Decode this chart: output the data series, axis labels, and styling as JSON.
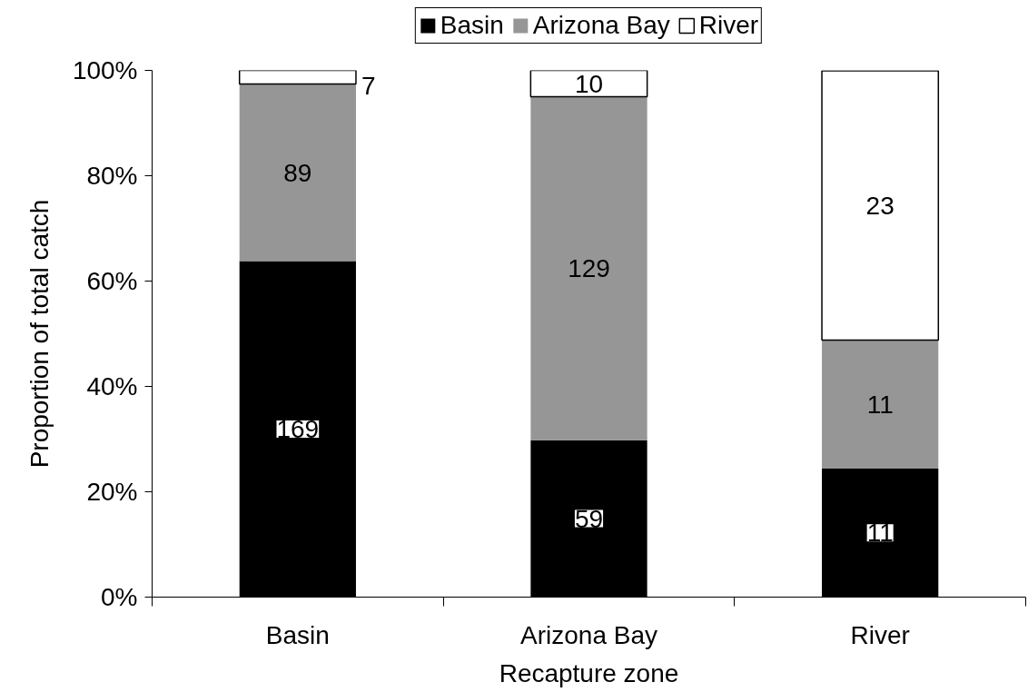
{
  "chart_data": {
    "type": "bar",
    "xlabel": "Recapture zone",
    "ylabel": "Proportion of total catch",
    "categories": [
      "Basin",
      "Arizona Bay",
      "River"
    ],
    "stacked": true,
    "legend": "top",
    "ylim": [
      0,
      100
    ],
    "yticks": [
      {
        "value": 0,
        "label": "0%"
      },
      {
        "value": 20,
        "label": "20%"
      },
      {
        "value": 40,
        "label": "40%"
      },
      {
        "value": 60,
        "label": "60%"
      },
      {
        "value": 80,
        "label": "80%"
      },
      {
        "value": 100,
        "label": "100%"
      }
    ],
    "series": [
      {
        "name": "Basin",
        "color": "#000000",
        "values": [
          63.8,
          29.8,
          24.4
        ]
      },
      {
        "name": "Arizona Bay",
        "color": "#969696",
        "values": [
          33.6,
          65.2,
          24.4
        ]
      },
      {
        "name": "River",
        "color": "#ffffff",
        "values": [
          2.6,
          5.0,
          51.1
        ]
      }
    ],
    "annotations": [
      "169",
      "59",
      "11",
      "89",
      "129",
      "11",
      "7",
      "10",
      "23"
    ]
  }
}
